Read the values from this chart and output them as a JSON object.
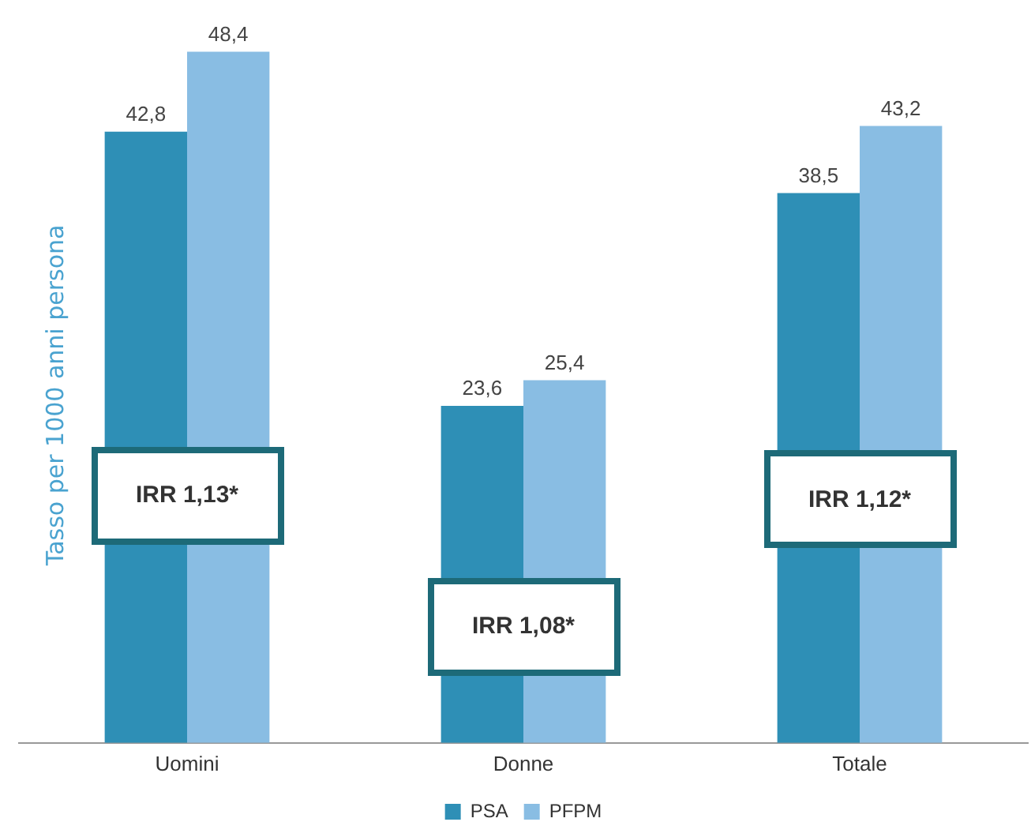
{
  "chart_data": {
    "type": "bar",
    "ylabel": "Tasso per 1000 anni persona",
    "categories": [
      "Uomini",
      "Donne",
      "Totale"
    ],
    "series": [
      {
        "name": "PSA",
        "color": "#2e8fb6",
        "values": [
          42.8,
          23.6,
          38.5
        ],
        "value_labels": [
          "42,8",
          "23,6",
          "38,5"
        ]
      },
      {
        "name": "PFPM",
        "color": "#89bde3",
        "values": [
          48.4,
          25.4,
          43.2
        ],
        "value_labels": [
          "48,4",
          "25,4",
          "43,2"
        ]
      }
    ],
    "legend": "bottom",
    "grid": false,
    "annotations": [
      "IRR 1,13*",
      "IRR 1,08*",
      "IRR 1,12*"
    ]
  }
}
